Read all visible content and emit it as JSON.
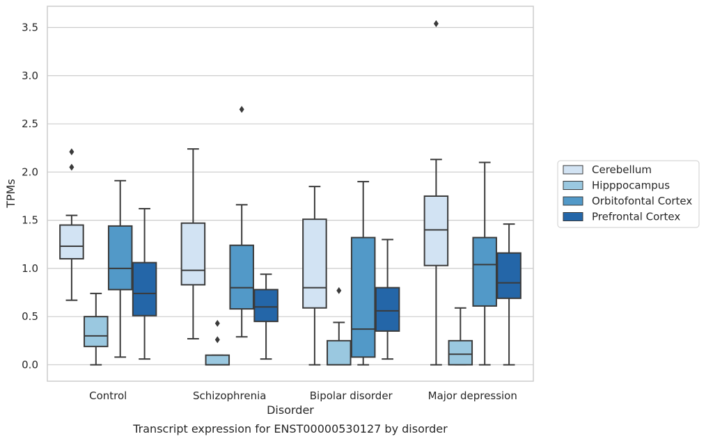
{
  "chart_data": {
    "type": "boxplot",
    "caption": "Transcript expression for ENST00000530127 by disorder",
    "xlabel": "Disorder",
    "ylabel": "TPMs",
    "ylim": [
      -0.17,
      3.72
    ],
    "yticks": [
      0.0,
      0.5,
      1.0,
      1.5,
      2.0,
      2.5,
      3.0,
      3.5
    ],
    "ytick_labels": [
      "0.0",
      "0.5",
      "1.0",
      "1.5",
      "2.0",
      "2.5",
      "3.0",
      "3.5"
    ],
    "grid": "horizontal",
    "legend_position": "right",
    "categories": [
      "Control",
      "Schizophrenia",
      "Bipolar disorder",
      "Major depression"
    ],
    "series": [
      {
        "name": "Cerebellum",
        "color": "#d2e3f3",
        "boxes": [
          {
            "whislo": 0.67,
            "q1": 1.1,
            "med": 1.23,
            "q3": 1.45,
            "whishi": 1.55,
            "fliers": [
              2.05,
              2.21
            ]
          },
          {
            "whislo": 0.27,
            "q1": 0.83,
            "med": 0.98,
            "q3": 1.47,
            "whishi": 2.24,
            "fliers": []
          },
          {
            "whislo": 0.0,
            "q1": 0.59,
            "med": 0.8,
            "q3": 1.51,
            "whishi": 1.85,
            "fliers": []
          },
          {
            "whislo": 0.0,
            "q1": 1.03,
            "med": 1.4,
            "q3": 1.75,
            "whishi": 2.13,
            "fliers": [
              3.54
            ]
          }
        ]
      },
      {
        "name": "Hipppocampus",
        "color": "#9ac8e0",
        "boxes": [
          {
            "whislo": 0.0,
            "q1": 0.19,
            "med": 0.3,
            "q3": 0.5,
            "whishi": 0.74,
            "fliers": []
          },
          {
            "whislo": 0.0,
            "q1": 0.0,
            "med": 0.0,
            "q3": 0.1,
            "whishi": 0.1,
            "fliers": [
              0.26,
              0.43
            ]
          },
          {
            "whislo": 0.0,
            "q1": 0.0,
            "med": 0.0,
            "q3": 0.25,
            "whishi": 0.44,
            "fliers": [
              0.77
            ]
          },
          {
            "whislo": 0.0,
            "q1": 0.0,
            "med": 0.11,
            "q3": 0.25,
            "whishi": 0.59,
            "fliers": []
          }
        ]
      },
      {
        "name": "Orbitofontal Cortex",
        "color": "#5299c8",
        "boxes": [
          {
            "whislo": 0.08,
            "q1": 0.78,
            "med": 1.0,
            "q3": 1.44,
            "whishi": 1.91,
            "fliers": []
          },
          {
            "whislo": 0.29,
            "q1": 0.58,
            "med": 0.8,
            "q3": 1.24,
            "whishi": 1.66,
            "fliers": [
              2.65
            ]
          },
          {
            "whislo": 0.0,
            "q1": 0.08,
            "med": 0.37,
            "q3": 1.32,
            "whishi": 1.9,
            "fliers": []
          },
          {
            "whislo": 0.0,
            "q1": 0.61,
            "med": 1.04,
            "q3": 1.32,
            "whishi": 2.1,
            "fliers": []
          }
        ]
      },
      {
        "name": "Prefrontal Cortex",
        "color": "#2466a8",
        "boxes": [
          {
            "whislo": 0.06,
            "q1": 0.51,
            "med": 0.74,
            "q3": 1.06,
            "whishi": 1.62,
            "fliers": []
          },
          {
            "whislo": 0.06,
            "q1": 0.45,
            "med": 0.6,
            "q3": 0.78,
            "whishi": 0.94,
            "fliers": []
          },
          {
            "whislo": 0.06,
            "q1": 0.35,
            "med": 0.56,
            "q3": 0.8,
            "whishi": 1.3,
            "fliers": []
          },
          {
            "whislo": 0.0,
            "q1": 0.69,
            "med": 0.85,
            "q3": 1.16,
            "whishi": 1.46,
            "fliers": []
          }
        ]
      }
    ]
  }
}
